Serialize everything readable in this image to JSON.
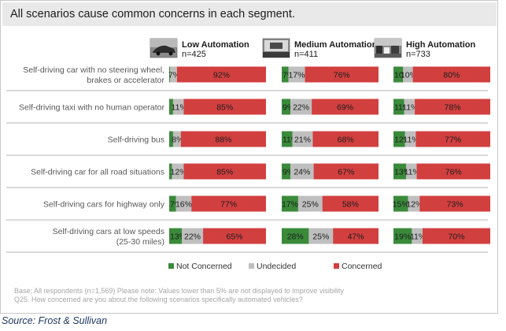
{
  "header": {
    "title": "All scenarios cause common concerns in each segment."
  },
  "chart_data": {
    "type": "bar",
    "stacked": true,
    "orientation": "horizontal",
    "units": "%",
    "segments": [
      {
        "title": "Low Automation",
        "n": "n=425"
      },
      {
        "title": "Medium Automation",
        "n": "n=411"
      },
      {
        "title": "High Automation",
        "n": "n=733"
      }
    ],
    "categories": [
      "Self-driving car with no steering wheel, brakes or accelerator",
      "Self-driving taxi with no human operator",
      "Self-driving bus",
      "Self-driving car for all road situations",
      "Self-driving cars for highway  only",
      "Self-driving cars at low speeds (25-30 miles)"
    ],
    "category_lines": [
      [
        "Self-driving car with no steering wheel,",
        "brakes or accelerator"
      ],
      [
        "Self-driving taxi with no human operator"
      ],
      [
        "Self-driving bus"
      ],
      [
        "Self-driving car for all road situations"
      ],
      [
        "Self-driving cars for highway  only"
      ],
      [
        "Self-driving cars at low speeds",
        "(25-30 miles)"
      ]
    ],
    "series": [
      {
        "name": "Not Concerned",
        "color": "#3a8a3a"
      },
      {
        "name": "Undecided",
        "color": "#bfbfbf"
      },
      {
        "name": "Concerned",
        "color": "#d23f3f"
      }
    ],
    "values": [
      [
        [
          1,
          7,
          92
        ],
        [
          7,
          17,
          76
        ],
        [
          10,
          10,
          80
        ]
      ],
      [
        [
          4,
          11,
          85
        ],
        [
          9,
          22,
          69
        ],
        [
          11,
          11,
          78
        ]
      ],
      [
        [
          4,
          8,
          88
        ],
        [
          11,
          21,
          68
        ],
        [
          12,
          11,
          77
        ]
      ],
      [
        [
          3,
          12,
          85
        ],
        [
          9,
          24,
          67
        ],
        [
          13,
          11,
          76
        ]
      ],
      [
        [
          7,
          16,
          77
        ],
        [
          17,
          25,
          58
        ],
        [
          15,
          12,
          73
        ]
      ],
      [
        [
          13,
          22,
          65
        ],
        [
          28,
          25,
          47
        ],
        [
          19,
          11,
          70
        ]
      ]
    ],
    "labels": [
      [
        [
          "",
          "7%",
          "92%"
        ],
        [
          "7%",
          "17%",
          "76%"
        ],
        [
          "10%",
          "10%",
          "80%"
        ]
      ],
      [
        [
          "",
          "11%",
          "85%"
        ],
        [
          "9%",
          "22%",
          "69%"
        ],
        [
          "11%",
          "11%",
          "78%"
        ]
      ],
      [
        [
          "",
          "8%",
          "88%"
        ],
        [
          "11%",
          "21%",
          "68%"
        ],
        [
          "12%",
          "11%",
          "77%"
        ]
      ],
      [
        [
          "",
          "12%",
          "85%"
        ],
        [
          "9%",
          "24%",
          "67%"
        ],
        [
          "13%",
          "11%",
          "76%"
        ]
      ],
      [
        [
          "7%",
          "16%",
          "77%"
        ],
        [
          "17%",
          "25%",
          "58%"
        ],
        [
          "15%",
          "12%",
          "73%"
        ]
      ],
      [
        [
          "13%",
          "22%",
          "65%"
        ],
        [
          "28%",
          "25%",
          "47%"
        ],
        [
          "19%",
          "11%",
          "70%"
        ]
      ]
    ],
    "legend_position": "bottom",
    "xlim": [
      0,
      100
    ],
    "grid": false
  },
  "footnotes": {
    "line1": "Base; All respondents (n=1,569)      Please note: Values lower than 5% are not displayed to improve visibility",
    "line2": "Q25. How concerned are you about the following scenarios specifically automated vehicles?"
  },
  "source": "Source: Frost & Sullivan",
  "icons": [
    "car-photo-icon",
    "dashboard-photo-icon",
    "traffic-photo-icon"
  ],
  "colors": {
    "header_band": "#e9e9e9",
    "title_text": "#1c1c1c",
    "source_text": "#1f3864"
  }
}
